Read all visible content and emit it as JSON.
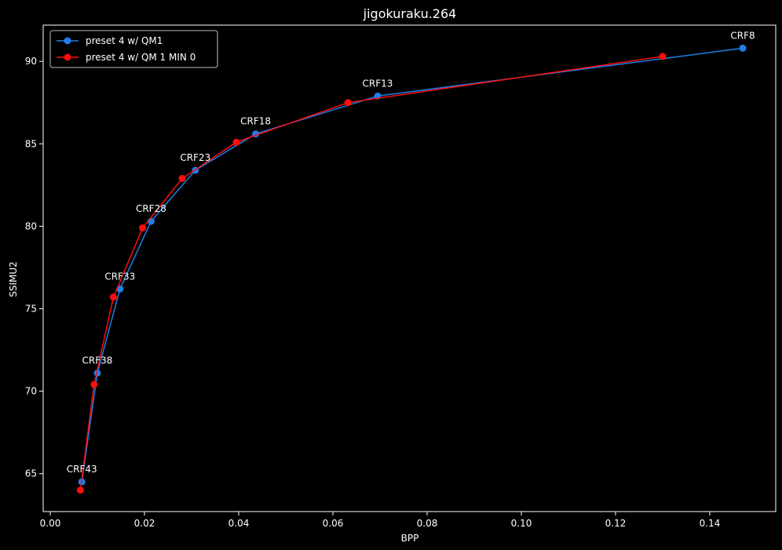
{
  "chart_data": {
    "type": "line",
    "title": "jigokuraku.264",
    "xlabel": "BPP",
    "ylabel": "SSIMU2",
    "xlim": [
      -0.0015,
      0.154
    ],
    "ylim": [
      62.7,
      92.2
    ],
    "xticks": [
      0.0,
      0.02,
      0.04,
      0.06,
      0.08,
      0.1,
      0.12,
      0.14
    ],
    "xtick_labels": [
      "0.00",
      "0.02",
      "0.04",
      "0.06",
      "0.08",
      "0.10",
      "0.12",
      "0.14"
    ],
    "yticks": [
      65,
      70,
      75,
      80,
      85,
      90
    ],
    "ytick_labels": [
      "65",
      "70",
      "75",
      "80",
      "85",
      "90"
    ],
    "grid": false,
    "legend_position": "top-left",
    "series": [
      {
        "name": "preset 4 w/ QM1",
        "color": "#1f7fe8",
        "x": [
          0.0067,
          0.01,
          0.0148,
          0.0214,
          0.0308,
          0.0436,
          0.0695,
          0.147
        ],
        "y": [
          64.5,
          71.1,
          76.2,
          80.3,
          83.4,
          85.6,
          87.9,
          90.8
        ]
      },
      {
        "name": "preset 4 w/ QM 1 MIN 0",
        "color": "#ff0d0d",
        "x": [
          0.0064,
          0.0093,
          0.0134,
          0.0196,
          0.028,
          0.0395,
          0.0632,
          0.13
        ],
        "y": [
          64.0,
          70.4,
          75.7,
          79.9,
          82.9,
          85.1,
          87.5,
          90.3
        ]
      }
    ],
    "annotations": [
      {
        "text": "CRF43",
        "x": 0.0067,
        "y": 64.5
      },
      {
        "text": "CRF38",
        "x": 0.01,
        "y": 71.1
      },
      {
        "text": "CRF33",
        "x": 0.0148,
        "y": 76.2
      },
      {
        "text": "CRF28",
        "x": 0.0214,
        "y": 80.3
      },
      {
        "text": "CRF23",
        "x": 0.0308,
        "y": 83.4
      },
      {
        "text": "CRF18",
        "x": 0.0436,
        "y": 85.6
      },
      {
        "text": "CRF13",
        "x": 0.0695,
        "y": 87.9
      },
      {
        "text": "CRF8",
        "x": 0.147,
        "y": 90.8
      }
    ]
  }
}
